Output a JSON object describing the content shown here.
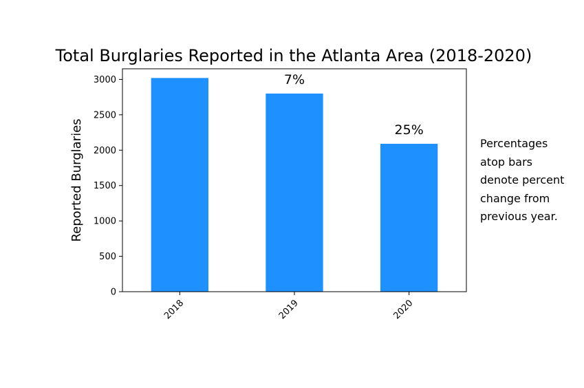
{
  "chart_data": {
    "type": "bar",
    "title": "Total Burglaries Reported in the Atlanta Area (2018-2020)",
    "xlabel": "",
    "ylabel": "Reported Burglaries",
    "categories": [
      "2018",
      "2019",
      "2020"
    ],
    "values": [
      3020,
      2800,
      2090
    ],
    "bar_labels": [
      "",
      "7%",
      "25%"
    ],
    "ylim": [
      0,
      3150
    ],
    "yticks": [
      0,
      500,
      1000,
      1500,
      2000,
      2500,
      3000
    ],
    "bar_color": "#1e90ff",
    "grid": false,
    "legend": null
  },
  "annotation": {
    "text": "Percentages\natop bars\ndenote percent\nchange from\nprevious year."
  }
}
